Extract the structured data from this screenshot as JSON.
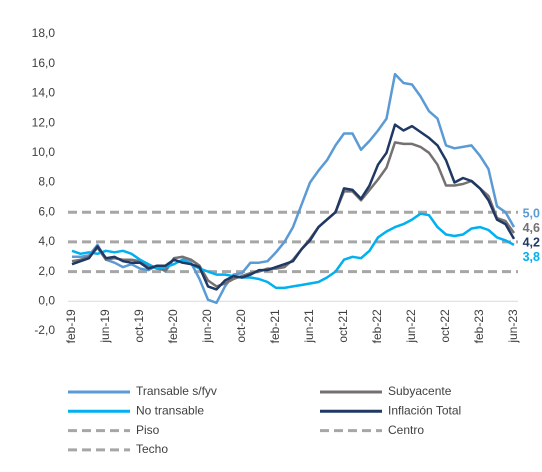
{
  "chart_data": {
    "type": "line",
    "categories": [
      "feb-19",
      null,
      null,
      null,
      "jun-19",
      null,
      null,
      null,
      "oct-19",
      null,
      null,
      null,
      "feb-20",
      null,
      null,
      null,
      "jun-20",
      null,
      null,
      null,
      "oct-20",
      null,
      null,
      null,
      "feb-21",
      null,
      null,
      null,
      "jun-21",
      null,
      null,
      null,
      "oct-21",
      null,
      null,
      null,
      "feb-22",
      null,
      null,
      null,
      "jun-22",
      null,
      null,
      null,
      "oct-22",
      null,
      null,
      null,
      "feb-23",
      null,
      null,
      null,
      "jun-23"
    ],
    "series": [
      {
        "name": "Transable s/fyv",
        "color": "#5b9bd5",
        "end_label": "5,0",
        "values": [
          3.0,
          3.0,
          3.1,
          3.8,
          2.8,
          2.6,
          2.3,
          2.5,
          2.2,
          2.1,
          2.4,
          2.0,
          2.9,
          3.0,
          2.6,
          1.5,
          0.1,
          -0.1,
          1.0,
          1.8,
          1.9,
          2.6,
          2.6,
          2.7,
          3.3,
          4.0,
          5.0,
          6.5,
          8.0,
          8.8,
          9.5,
          10.5,
          11.3,
          11.3,
          10.2,
          10.8,
          11.5,
          12.3,
          15.3,
          14.7,
          14.6,
          13.8,
          12.8,
          12.3,
          10.5,
          10.3,
          10.4,
          10.5,
          9.8,
          8.9,
          6.4,
          6.0,
          5.0
        ]
      },
      {
        "name": "Subyacente",
        "color": "#767171",
        "end_label": "4,6",
        "values": [
          2.7,
          2.8,
          3.0,
          3.6,
          2.8,
          2.9,
          2.8,
          2.8,
          2.7,
          2.4,
          2.2,
          2.1,
          2.9,
          3.0,
          2.8,
          2.4,
          1.4,
          1.0,
          1.2,
          1.5,
          1.7,
          1.9,
          2.0,
          2.2,
          2.2,
          2.3,
          2.8,
          3.5,
          4.2,
          5.0,
          5.5,
          6.0,
          7.4,
          7.4,
          6.8,
          7.5,
          8.2,
          9.0,
          10.7,
          10.6,
          10.6,
          10.4,
          10.0,
          9.2,
          7.8,
          7.8,
          7.9,
          8.1,
          7.6,
          7.1,
          5.6,
          5.4,
          4.6
        ]
      },
      {
        "name": "No transable",
        "color": "#00b0f0",
        "end_label": "3,8",
        "values": [
          3.4,
          3.2,
          3.3,
          3.2,
          3.4,
          3.3,
          3.4,
          3.2,
          2.8,
          2.5,
          2.2,
          2.3,
          2.5,
          2.8,
          2.5,
          2.2,
          2.0,
          1.8,
          1.8,
          1.7,
          1.6,
          1.6,
          1.5,
          1.3,
          0.9,
          0.9,
          1.0,
          1.1,
          1.2,
          1.3,
          1.6,
          2.0,
          2.8,
          3.0,
          2.9,
          3.4,
          4.3,
          4.7,
          5.0,
          5.2,
          5.5,
          5.9,
          5.8,
          5.0,
          4.5,
          4.4,
          4.5,
          4.9,
          5.0,
          4.8,
          4.3,
          4.1,
          3.8
        ]
      },
      {
        "name": "Inflación Total",
        "color": "#203864",
        "end_label": "4,2",
        "values": [
          2.5,
          2.7,
          2.9,
          3.7,
          2.9,
          3.0,
          2.7,
          2.6,
          2.6,
          2.2,
          2.4,
          2.4,
          2.8,
          2.6,
          2.5,
          2.3,
          1.0,
          0.8,
          1.4,
          1.7,
          1.6,
          1.8,
          2.1,
          2.1,
          2.3,
          2.5,
          2.7,
          3.5,
          4.1,
          5.0,
          5.5,
          6.0,
          7.6,
          7.5,
          6.9,
          7.8,
          9.2,
          10.0,
          11.9,
          11.5,
          11.8,
          11.4,
          11.0,
          10.5,
          9.5,
          8.0,
          8.3,
          8.1,
          7.6,
          6.8,
          5.5,
          5.2,
          4.2
        ]
      }
    ],
    "reference_lines": [
      {
        "name": "Piso",
        "value": 2,
        "color": "#a6a6a6"
      },
      {
        "name": "Centro",
        "value": 4,
        "color": "#a6a6a6"
      },
      {
        "name": "Techo",
        "value": 6,
        "color": "#a6a6a6"
      }
    ],
    "ylim": [
      -2,
      18
    ],
    "yticks": [
      {
        "value": -2,
        "label": "-2,0"
      },
      {
        "value": 0,
        "label": "0,0"
      },
      {
        "value": 2,
        "label": "2,0"
      },
      {
        "value": 4,
        "label": "4,0"
      },
      {
        "value": 6,
        "label": "6,0"
      },
      {
        "value": 8,
        "label": "8,0"
      },
      {
        "value": 10,
        "label": "10,0"
      },
      {
        "value": 12,
        "label": "12,0"
      },
      {
        "value": 14,
        "label": "14,0"
      },
      {
        "value": 16,
        "label": "16,0"
      },
      {
        "value": 18,
        "label": "18,0"
      }
    ]
  }
}
